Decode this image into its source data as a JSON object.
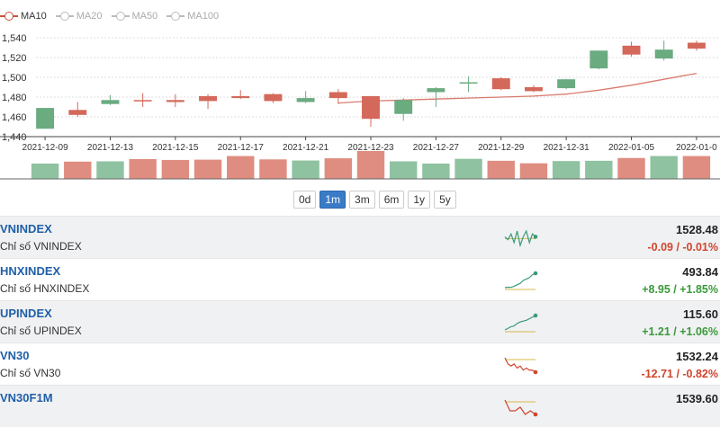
{
  "legend": [
    {
      "label": "MA10",
      "color": "#c9523e",
      "active": true
    },
    {
      "label": "MA20",
      "color": "#bbbbbb",
      "active": false
    },
    {
      "label": "MA50",
      "color": "#bbbbbb",
      "active": false
    },
    {
      "label": "MA100",
      "color": "#bbbbbb",
      "active": false
    }
  ],
  "chart_data": {
    "type": "candlestick",
    "ylim": [
      1440,
      1540
    ],
    "yticks": [
      "1,440",
      "1,460",
      "1,480",
      "1,500",
      "1,520",
      "1,540"
    ],
    "xticks": [
      "2021-12-09",
      "2021-12-13",
      "2021-12-15",
      "2021-12-17",
      "2021-12-21",
      "2021-12-23",
      "2021-12-27",
      "2021-12-29",
      "2021-12-31",
      "2022-01-05",
      "2022-01-0"
    ],
    "candles": [
      {
        "o": 1448,
        "c": 1469,
        "h": 1469,
        "l": 1448
      },
      {
        "o": 1467,
        "c": 1462,
        "h": 1475,
        "l": 1460
      },
      {
        "o": 1473,
        "c": 1477,
        "h": 1482,
        "l": 1472
      },
      {
        "o": 1477,
        "c": 1476,
        "h": 1484,
        "l": 1470
      },
      {
        "o": 1477,
        "c": 1475,
        "h": 1483,
        "l": 1470
      },
      {
        "o": 1481,
        "c": 1476,
        "h": 1483,
        "l": 1468
      },
      {
        "o": 1481,
        "c": 1479,
        "h": 1487,
        "l": 1478
      },
      {
        "o": 1483,
        "c": 1476,
        "h": 1484,
        "l": 1474
      },
      {
        "o": 1475,
        "c": 1479,
        "h": 1486,
        "l": 1474
      },
      {
        "o": 1485,
        "c": 1479,
        "h": 1488,
        "l": 1473
      },
      {
        "o": 1481,
        "c": 1458,
        "h": 1481,
        "l": 1450
      },
      {
        "o": 1463,
        "c": 1477,
        "h": 1479,
        "l": 1456
      },
      {
        "o": 1485,
        "c": 1489,
        "h": 1490,
        "l": 1470
      },
      {
        "o": 1495,
        "c": 1495,
        "h": 1501,
        "l": 1485
      },
      {
        "o": 1499,
        "c": 1488,
        "h": 1500,
        "l": 1487
      },
      {
        "o": 1490,
        "c": 1486,
        "h": 1492,
        "l": 1485
      },
      {
        "o": 1489,
        "c": 1498,
        "h": 1498,
        "l": 1488
      },
      {
        "o": 1509,
        "c": 1527,
        "h": 1527,
        "l": 1508
      },
      {
        "o": 1532,
        "c": 1523,
        "h": 1536,
        "l": 1521
      },
      {
        "o": 1519,
        "c": 1528,
        "h": 1537,
        "l": 1517
      },
      {
        "o": 1535,
        "c": 1529,
        "h": 1537,
        "l": 1527
      }
    ],
    "ma10": [
      1474,
      1476,
      1477,
      1478,
      1479,
      1480,
      1481,
      1483,
      1487,
      1492,
      1498,
      1504
    ],
    "volume": [
      0.55,
      0.62,
      0.63,
      0.71,
      0.68,
      0.69,
      0.82,
      0.7,
      0.66,
      0.74,
      1.0,
      0.63,
      0.55,
      0.72,
      0.65,
      0.56,
      0.64,
      0.65,
      0.75,
      0.82,
      0.82
    ],
    "up_color": "#6aab80",
    "down_color": "#d4685a"
  },
  "range_buttons": [
    "0d",
    "1m",
    "3m",
    "6m",
    "1y",
    "5y"
  ],
  "range_active": "1m",
  "indices": [
    {
      "symbol": "VNINDEX",
      "desc": "Chỉ số VNINDEX",
      "price": "1528.48",
      "change": "-0.09 / -0.01%",
      "dir": "down",
      "spark": [
        6,
        5,
        7,
        4,
        8,
        3,
        6,
        8,
        4,
        7,
        6
      ],
      "spark_color": "#3a9a7a"
    },
    {
      "symbol": "HNXINDEX",
      "desc": "Chỉ số HNXINDEX",
      "price": "493.84",
      "change": "+8.95 / +1.85%",
      "dir": "up",
      "spark": [
        2,
        2.3,
        2.2,
        3,
        4,
        5,
        7,
        8,
        9,
        11,
        12
      ],
      "spark_color": "#3a9a7a"
    },
    {
      "symbol": "UPINDEX",
      "desc": "Chỉ số UPINDEX",
      "price": "115.60",
      "change": "+1.21 / +1.06%",
      "dir": "up",
      "spark": [
        3,
        4,
        5,
        5.5,
        7,
        8,
        8.5,
        9,
        10,
        11,
        12
      ],
      "spark_color": "#3a9a7a"
    },
    {
      "symbol": "VN30",
      "desc": "Chỉ số VN30",
      "price": "1532.24",
      "change": "-12.71 / -0.82%",
      "dir": "down",
      "spark": [
        10,
        7,
        6,
        7,
        5,
        6,
        4,
        5,
        4,
        4,
        3
      ],
      "spark_color": "#d0452e"
    },
    {
      "symbol": "VN30F1M",
      "desc": "",
      "price": "1539.60",
      "change": "",
      "dir": "down",
      "spark": [
        11,
        8,
        8,
        9,
        7,
        8,
        7
      ],
      "spark_color": "#d0452e"
    }
  ]
}
